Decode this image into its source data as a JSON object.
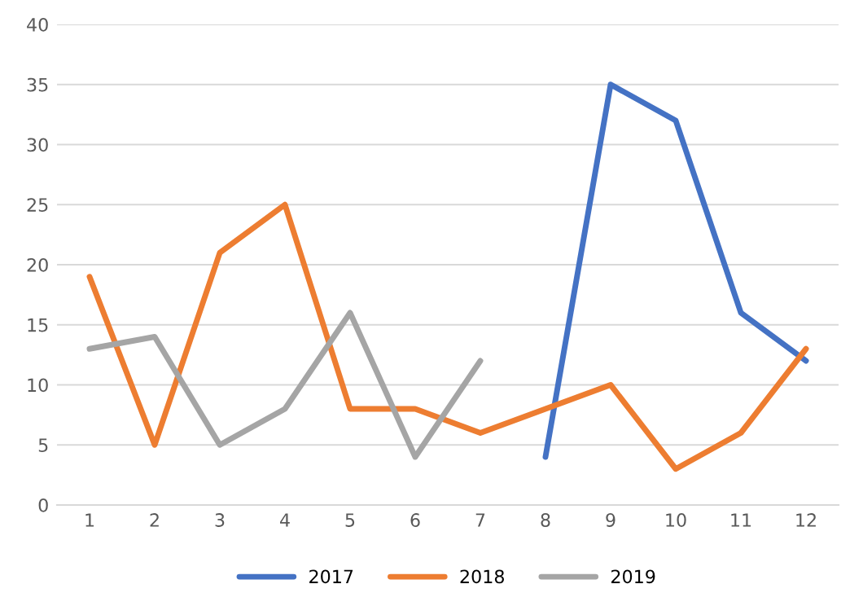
{
  "chart_data": {
    "type": "line",
    "categories": [
      "1",
      "2",
      "3",
      "4",
      "5",
      "6",
      "7",
      "8",
      "9",
      "10",
      "11",
      "12"
    ],
    "series": [
      {
        "name": "2017",
        "color": "#4472c4",
        "values": [
          null,
          null,
          null,
          null,
          null,
          null,
          null,
          4,
          35,
          32,
          16,
          12
        ]
      },
      {
        "name": "2018",
        "color": "#ed7d31",
        "values": [
          19,
          5,
          21,
          25,
          8,
          8,
          6,
          8,
          10,
          3,
          6,
          13
        ]
      },
      {
        "name": "2019",
        "color": "#a5a5a5",
        "values": [
          13,
          14,
          5,
          8,
          16,
          4,
          12,
          null,
          null,
          null,
          null,
          null
        ]
      }
    ],
    "ylim": [
      0,
      40
    ],
    "yticks": [
      0,
      5,
      10,
      15,
      20,
      25,
      30,
      35,
      40
    ],
    "grid": "y",
    "legend": "bottom",
    "marker": "none",
    "line_style": "solid"
  }
}
